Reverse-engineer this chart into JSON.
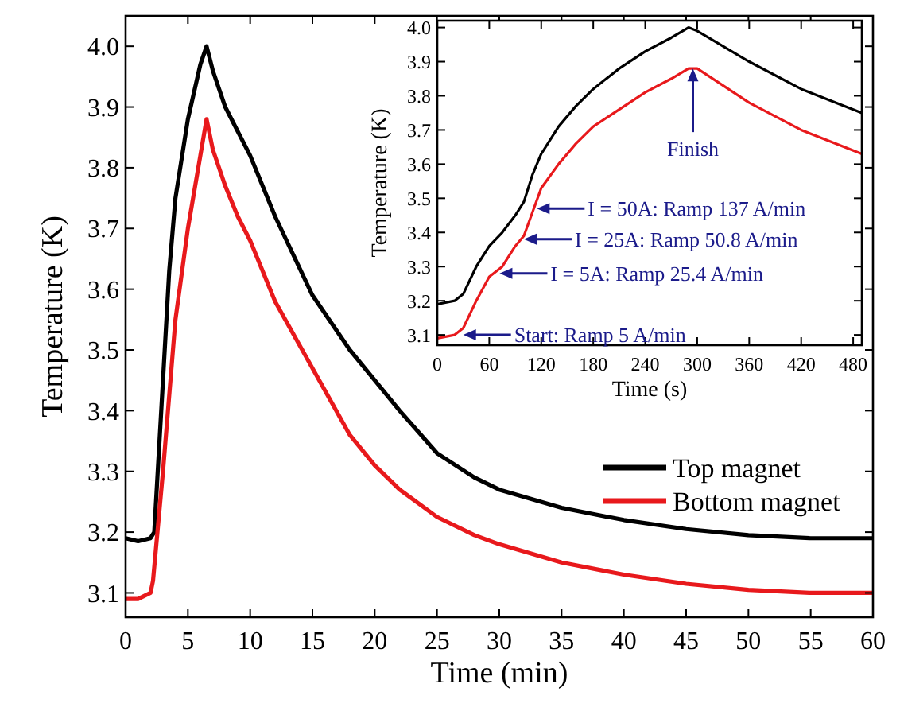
{
  "chart_data": [
    {
      "type": "line",
      "xlabel": "Time (min)",
      "ylabel": "Temperature (K)",
      "xlim": [
        0,
        60
      ],
      "ylim": [
        3.06,
        4.05
      ],
      "xticks": [
        0,
        5,
        10,
        15,
        20,
        25,
        30,
        35,
        40,
        45,
        50,
        55,
        60
      ],
      "yticks": [
        3.1,
        3.2,
        3.3,
        3.4,
        3.5,
        3.6,
        3.7,
        3.8,
        3.9,
        {
          "value": 4,
          "label": "4.0"
        }
      ],
      "legend": "right",
      "marker": "none",
      "line_style": "solid",
      "series": [
        {
          "name": "Top magnet",
          "color": "#000000",
          "x": [
            0,
            1,
            2,
            2.3,
            3,
            3.5,
            4,
            5,
            6,
            6.5,
            7,
            8,
            9,
            10,
            12,
            15,
            18,
            20,
            22,
            25,
            28,
            30,
            35,
            40,
            45,
            50,
            55,
            60
          ],
          "values": [
            3.19,
            3.185,
            3.19,
            3.2,
            3.45,
            3.63,
            3.75,
            3.88,
            3.97,
            4.0,
            3.96,
            3.9,
            3.86,
            3.82,
            3.72,
            3.59,
            3.5,
            3.45,
            3.4,
            3.33,
            3.29,
            3.27,
            3.24,
            3.22,
            3.205,
            3.195,
            3.19,
            3.19
          ]
        },
        {
          "name": "Bottom magnet",
          "color": "#e8191c",
          "x": [
            0,
            1,
            2,
            2.2,
            3,
            4,
            5,
            6,
            6.5,
            7,
            8,
            9,
            10,
            12,
            15,
            18,
            20,
            22,
            25,
            28,
            30,
            35,
            40,
            45,
            50,
            55,
            60
          ],
          "values": [
            3.09,
            3.09,
            3.1,
            3.12,
            3.3,
            3.55,
            3.7,
            3.82,
            3.88,
            3.83,
            3.77,
            3.72,
            3.68,
            3.58,
            3.47,
            3.36,
            3.31,
            3.27,
            3.225,
            3.195,
            3.18,
            3.15,
            3.13,
            3.115,
            3.105,
            3.1,
            3.1
          ]
        }
      ]
    },
    {
      "type": "line",
      "xlabel": "Time (s)",
      "ylabel": "Temperature (K)",
      "xlim": [
        0,
        490
      ],
      "ylim": [
        3.07,
        4.02
      ],
      "xticks": [
        0,
        60,
        120,
        180,
        240,
        300,
        360,
        420,
        480
      ],
      "yticks": [
        3.1,
        3.2,
        3.3,
        3.4,
        3.5,
        3.6,
        3.7,
        3.8,
        3.9,
        {
          "value": 4,
          "label": "4.0"
        }
      ],
      "marker": "none",
      "line_style": "solid",
      "annotations": [
        {
          "text": "Start: Ramp 5 A/min",
          "x": 30,
          "y": 3.1
        },
        {
          "text": "I = 5A: Ramp 25.4 A/min",
          "x": 72,
          "y": 3.28
        },
        {
          "text": "I = 25A: Ramp 50.8 A/min",
          "x": 100,
          "y": 3.38
        },
        {
          "text": "I = 50A: Ramp 137 A/min",
          "x": 115,
          "y": 3.47
        },
        {
          "text": "Finish",
          "x": 295,
          "y": 3.88
        }
      ],
      "series": [
        {
          "color": "#000000",
          "x": [
            0,
            20,
            30,
            45,
            60,
            75,
            90,
            100,
            110,
            120,
            140,
            160,
            180,
            210,
            240,
            270,
            290,
            300,
            360,
            420,
            490
          ],
          "values": [
            3.19,
            3.2,
            3.22,
            3.3,
            3.36,
            3.4,
            3.45,
            3.49,
            3.57,
            3.63,
            3.71,
            3.77,
            3.82,
            3.88,
            3.93,
            3.97,
            4.0,
            3.99,
            3.9,
            3.82,
            3.75
          ]
        },
        {
          "color": "#e8191c",
          "x": [
            0,
            20,
            30,
            45,
            60,
            75,
            90,
            100,
            110,
            120,
            140,
            160,
            180,
            210,
            240,
            270,
            290,
            300,
            360,
            420,
            490
          ],
          "values": [
            3.09,
            3.1,
            3.12,
            3.2,
            3.27,
            3.3,
            3.36,
            3.39,
            3.46,
            3.53,
            3.6,
            3.66,
            3.71,
            3.76,
            3.81,
            3.85,
            3.88,
            3.88,
            3.78,
            3.7,
            3.63
          ]
        }
      ]
    }
  ]
}
